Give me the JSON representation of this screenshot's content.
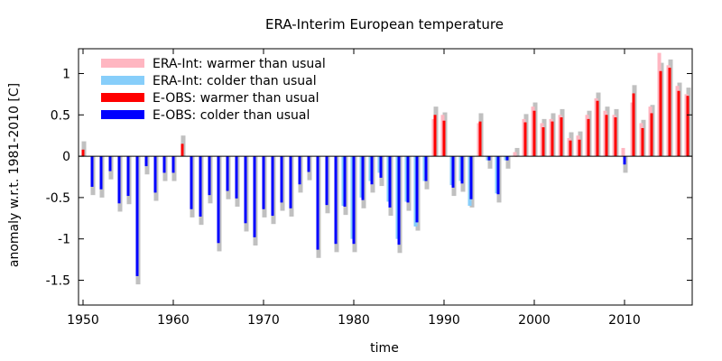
{
  "chart_data": {
    "type": "bar",
    "title": "ERA-Interim European temperature",
    "xlabel": "time",
    "ylabel": "anomaly w.r.t. 1981-2010 [C]",
    "xlim": [
      1949.5,
      2017.5
    ],
    "ylim": [
      -1.8,
      1.3
    ],
    "x_ticks": [
      1950,
      1960,
      1970,
      1980,
      1990,
      2000,
      2010
    ],
    "y_ticks": [
      -1.5,
      -1,
      -0.5,
      0,
      0.5,
      1
    ],
    "y_tick_labels": [
      "-1.5",
      "-1",
      "-0.5",
      "0",
      "0.5",
      "1"
    ],
    "legend_position": "top-left",
    "legend": [
      {
        "label": "ERA-Int: warmer than usual",
        "color": "#ffb6c1"
      },
      {
        "label": "ERA-Int: colder than usual",
        "color": "#87cefa"
      },
      {
        "label": "E-OBS: warmer than usual",
        "color": "#ff0000"
      },
      {
        "label": "E-OBS: colder than usual",
        "color": "#0000ff"
      }
    ],
    "colors": {
      "uncertainty": "#c0c0c0",
      "era_warm": "#ffb6c1",
      "era_cold": "#87cefa",
      "eobs_warm": "#ff0000",
      "eobs_cold": "#0000ff"
    },
    "years": [
      1950,
      1951,
      1952,
      1953,
      1954,
      1955,
      1956,
      1957,
      1958,
      1959,
      1960,
      1961,
      1962,
      1963,
      1964,
      1965,
      1966,
      1967,
      1968,
      1969,
      1970,
      1971,
      1972,
      1973,
      1974,
      1975,
      1976,
      1977,
      1978,
      1979,
      1980,
      1981,
      1982,
      1983,
      1984,
      1985,
      1986,
      1987,
      1988,
      1989,
      1990,
      1991,
      1992,
      1993,
      1994,
      1995,
      1996,
      1997,
      1998,
      1999,
      2000,
      2001,
      2002,
      2003,
      2004,
      2005,
      2006,
      2007,
      2008,
      2009,
      2010,
      2011,
      2012,
      2013,
      2014,
      2015,
      2016,
      2017
    ],
    "eobs": [
      0.08,
      -0.37,
      -0.4,
      -0.18,
      -0.57,
      -0.48,
      -1.45,
      -0.12,
      -0.44,
      -0.2,
      -0.2,
      0.15,
      -0.64,
      -0.73,
      -0.47,
      -1.05,
      -0.42,
      -0.51,
      -0.81,
      -0.98,
      -0.64,
      -0.72,
      -0.56,
      -0.63,
      -0.34,
      -0.19,
      -1.13,
      -0.59,
      -1.06,
      -0.61,
      -1.06,
      -0.53,
      -0.34,
      -0.26,
      -0.62,
      -1.07,
      -0.56,
      -0.8,
      -0.3,
      0.5,
      0.43,
      -0.38,
      -0.33,
      -0.52,
      0.42,
      -0.05,
      -0.46,
      -0.05,
      0.0,
      0.41,
      0.55,
      0.35,
      0.42,
      0.47,
      0.19,
      0.2,
      0.45,
      0.67,
      0.5,
      0.47,
      -0.1,
      0.76,
      0.34,
      0.52,
      1.03,
      1.07,
      0.79,
      0.73
    ],
    "era": [
      null,
      null,
      null,
      null,
      null,
      null,
      null,
      null,
      null,
      null,
      null,
      null,
      null,
      null,
      null,
      null,
      null,
      null,
      null,
      null,
      null,
      null,
      null,
      null,
      null,
      null,
      null,
      null,
      null,
      -0.6,
      -1.0,
      -0.5,
      -0.3,
      -0.2,
      -0.55,
      -1.0,
      -0.55,
      -0.85,
      -0.3,
      0.45,
      0.5,
      -0.35,
      -0.3,
      -0.6,
      0.4,
      -0.05,
      -0.45,
      -0.05,
      0.05,
      0.45,
      0.6,
      0.4,
      0.45,
      0.5,
      0.22,
      0.25,
      0.5,
      0.7,
      0.55,
      0.5,
      0.1,
      0.65,
      0.4,
      0.6,
      1.25,
      1.1,
      0.85,
      0.75
    ],
    "uncertainty": [
      0.1,
      0.1,
      0.1,
      0.1,
      0.1,
      0.1,
      0.1,
      0.1,
      0.1,
      0.1,
      0.1,
      0.1,
      0.1,
      0.1,
      0.1,
      0.1,
      0.1,
      0.1,
      0.1,
      0.1,
      0.1,
      0.1,
      0.1,
      0.1,
      0.1,
      0.1,
      0.1,
      0.1,
      0.1,
      0.1,
      0.1,
      0.1,
      0.1,
      0.1,
      0.1,
      0.1,
      0.1,
      0.1,
      0.1,
      0.1,
      0.1,
      0.1,
      0.1,
      0.1,
      0.1,
      0.1,
      0.1,
      0.1,
      0.1,
      0.1,
      0.1,
      0.1,
      0.1,
      0.1,
      0.1,
      0.1,
      0.1,
      0.1,
      0.1,
      0.1,
      0.1,
      0.1,
      0.1,
      0.1,
      0.1,
      0.1,
      0.1,
      0.1
    ]
  }
}
